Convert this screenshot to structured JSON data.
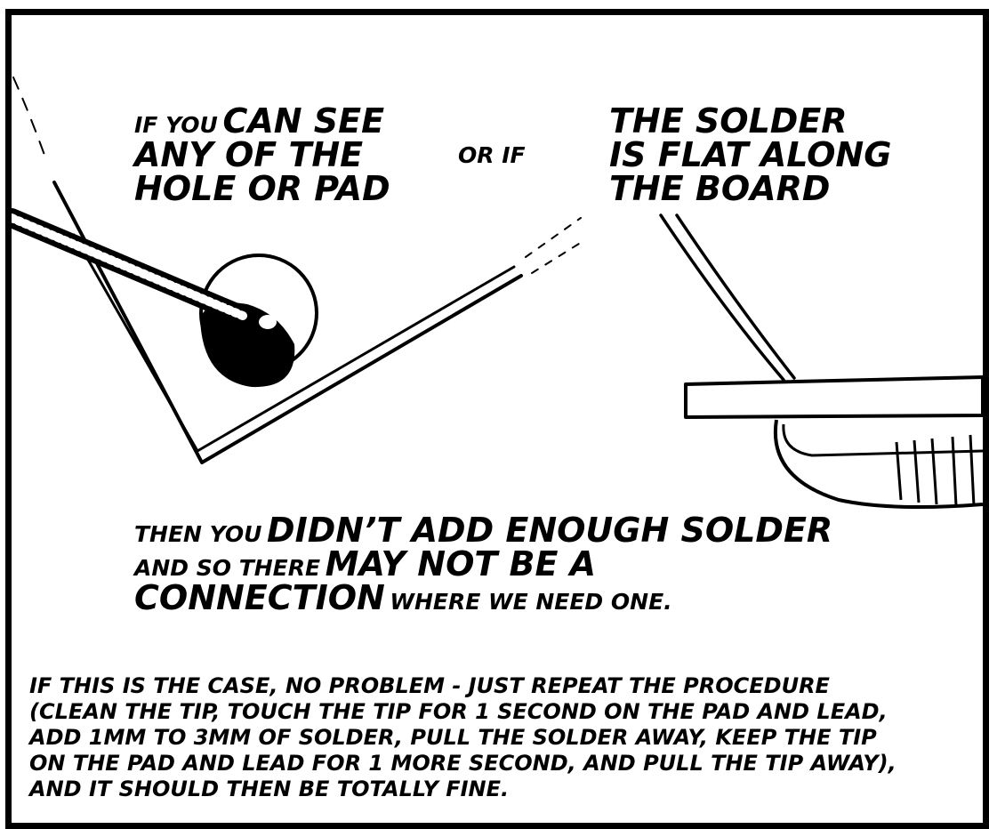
{
  "panel": {
    "text_one": {
      "line1_small": "If you",
      "line1_big": "can see",
      "line2": "any of the",
      "line3": "hole or pad"
    },
    "connector": "or if",
    "text_two": {
      "line1": "the solder",
      "line2": "is flat along",
      "line3": "the board"
    },
    "consequence": {
      "line1_small": "then you",
      "line1_big": "didn’t add enough solder",
      "line2_small": "and so there",
      "line2_big": "may not be a",
      "line3_big": "connection",
      "line3_small": "where we need one."
    },
    "caption": {
      "line1": "If this is the case, no problem - just repeat the procedure",
      "line2": "(clean the tip, touch the tip for 1 second on the pad and lead,",
      "line3": "add 1mm to 3mm of solder, pull the solder away, keep the tip",
      "line4": "on the pad and lead for 1 more second, and pull the tip away),",
      "line5": "and it should then be totally fine."
    }
  }
}
